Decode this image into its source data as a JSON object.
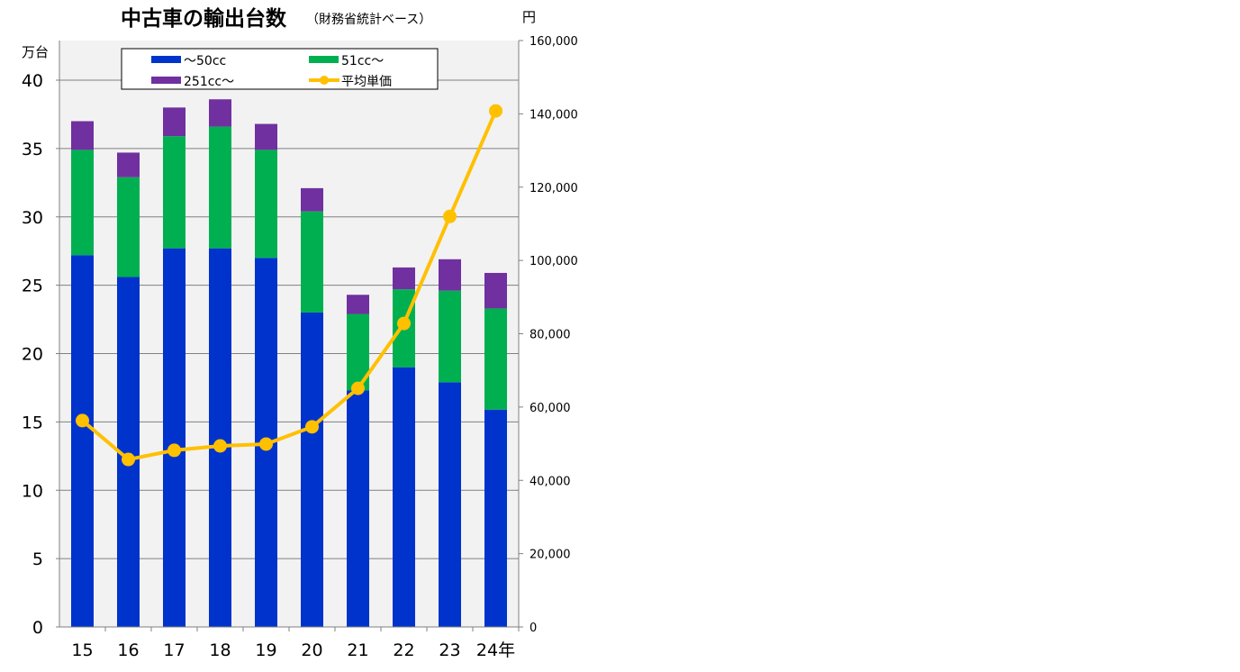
{
  "chart_data": {
    "type": "bar",
    "stacked": true,
    "title": "中古車の輸出台数",
    "subtitle": "（財務省統計ベース）",
    "ylabel": "万台",
    "y2label": "円",
    "categories": [
      "15",
      "16",
      "17",
      "18",
      "19",
      "20",
      "21",
      "22",
      "23",
      "24年"
    ],
    "ylim": [
      0,
      40
    ],
    "yticks": [
      "0",
      "5",
      "10",
      "15",
      "20",
      "25",
      "30",
      "35",
      "40"
    ],
    "y2lim": [
      0,
      160000
    ],
    "y2ticks": [
      "0",
      "20,000",
      "40,000",
      "60,000",
      "80,000",
      "100,000",
      "120,000",
      "140,000",
      "160,000"
    ],
    "grid": true,
    "legend_position": "top",
    "series": [
      {
        "name": "～50cc",
        "type": "bar",
        "color": "#0033cc",
        "values": [
          27.2,
          25.6,
          27.7,
          27.7,
          27.0,
          23.0,
          17.3,
          19.0,
          17.9,
          15.9
        ]
      },
      {
        "name": "51cc～",
        "type": "bar",
        "color": "#00b050",
        "values": [
          7.7,
          7.3,
          8.2,
          8.9,
          7.9,
          7.4,
          5.6,
          5.7,
          6.7,
          7.4
        ]
      },
      {
        "name": "251cc～",
        "type": "bar",
        "color": "#7030a0",
        "values": [
          2.1,
          1.8,
          2.1,
          2.0,
          1.9,
          1.7,
          1.4,
          1.6,
          2.3,
          2.6
        ]
      },
      {
        "name": "平均単価",
        "type": "line",
        "axis": "right",
        "color": "#ffc000",
        "values": [
          56300,
          45700,
          48200,
          49400,
          49900,
          54600,
          65100,
          82800,
          112000,
          140800
        ]
      }
    ]
  }
}
